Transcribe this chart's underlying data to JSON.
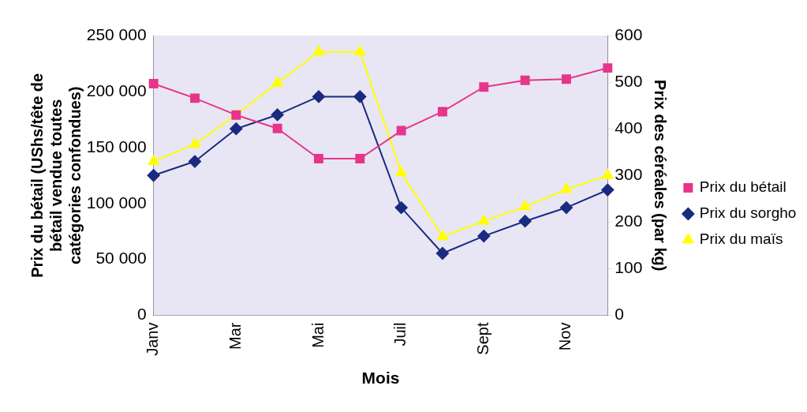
{
  "chart_data": {
    "type": "line",
    "xlabel": "Mois",
    "ylabel": "Prix du bétail (UShs/tête de bétail vendue toutes catégories confondues)",
    "y2label": "Prix des céréales (par kg)",
    "categories": [
      "Janv",
      null,
      "Mar",
      null,
      "Mai",
      null,
      "Juil",
      null,
      "Sept",
      null,
      "Nov",
      null
    ],
    "series": [
      {
        "name": "Prix du bétail",
        "color": "#e6358a",
        "marker": "square",
        "values": [
          207000,
          194000,
          179000,
          167000,
          140000,
          140000,
          165000,
          182000,
          204000,
          210000,
          211000,
          221000
        ]
      },
      {
        "name": "Prix du sorgho",
        "color": "#1a2a80",
        "marker": "diamond",
        "axis": "y2",
        "values": [
          300,
          330,
          400,
          430,
          469,
          469,
          231,
          133,
          170,
          202,
          231,
          269
        ]
      },
      {
        "name": "Prix du maïs",
        "color": "#ffff00",
        "marker": "triangle",
        "axis": "y2",
        "values": [
          330,
          367,
          430,
          498,
          565,
          565,
          306,
          169,
          202,
          233,
          270,
          300
        ]
      }
    ],
    "ylim": [
      0,
      250000
    ],
    "yticks": [
      {
        "value": 0,
        "label": "0"
      },
      {
        "value": 50000,
        "label": "50 000"
      },
      {
        "value": 100000,
        "label": "100 000"
      },
      {
        "value": 150000,
        "label": "150 000"
      },
      {
        "value": 200000,
        "label": "200 000"
      },
      {
        "value": 250000,
        "label": "250 000"
      }
    ],
    "y2lim": [
      0,
      600
    ],
    "y2ticks": [
      0,
      100,
      200,
      300,
      400,
      500,
      600
    ],
    "grid": false,
    "legend": "right"
  }
}
